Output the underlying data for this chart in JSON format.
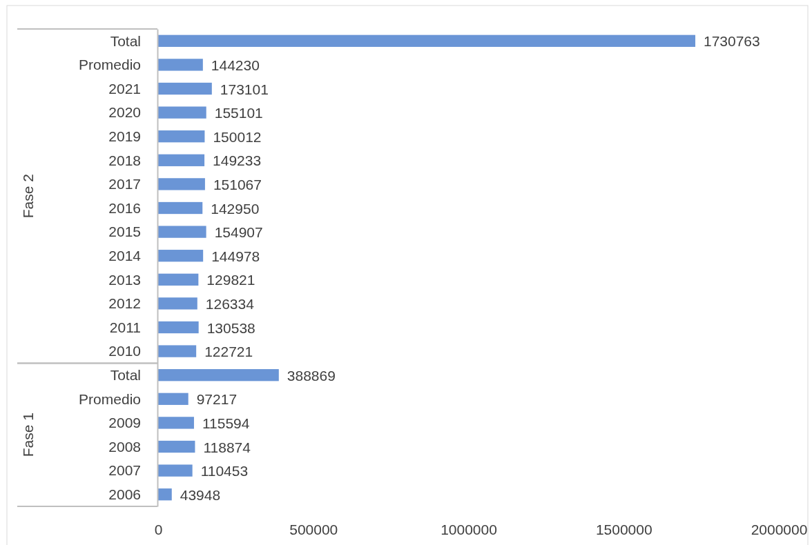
{
  "chart_data": [
    {
      "type": "bar",
      "orientation": "horizontal",
      "ylabel": "Fase 2",
      "categories": [
        "Total",
        "Promedio",
        "2021",
        "2020",
        "2019",
        "2018",
        "2017",
        "2016",
        "2015",
        "2014",
        "2013",
        "2012",
        "2011",
        "2010"
      ],
      "values": [
        1730763,
        144230,
        173101,
        155101,
        150012,
        149233,
        151067,
        142950,
        154907,
        144978,
        129821,
        126334,
        130538,
        122721
      ],
      "color": "#6a95d6",
      "data_labels": true,
      "xlim": [
        0,
        2000000
      ],
      "tick_labels": "y"
    },
    {
      "type": "bar",
      "orientation": "horizontal",
      "ylabel": "Fase 1",
      "categories": [
        "Total",
        "Promedio",
        "2009",
        "2008",
        "2007",
        "2006"
      ],
      "values": [
        388869,
        97217,
        115594,
        118874,
        110453,
        43948
      ],
      "color": "#6a95d6",
      "data_labels": true,
      "xlim": [
        0,
        2000000
      ],
      "xticks": [
        0,
        500000,
        1000000,
        1500000,
        2000000
      ]
    }
  ]
}
